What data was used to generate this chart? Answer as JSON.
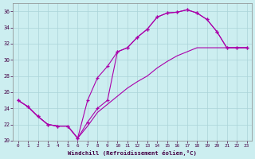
{
  "xlabel": "Windchill (Refroidissement éolien,°C)",
  "background_color": "#cceef0",
  "grid_color": "#aad4d8",
  "line_color": "#aa00aa",
  "ylim": [
    20,
    37
  ],
  "xlim": [
    -0.5,
    23.5
  ],
  "yticks": [
    20,
    22,
    24,
    26,
    28,
    30,
    32,
    34,
    36
  ],
  "xticks": [
    0,
    1,
    2,
    3,
    4,
    5,
    6,
    7,
    8,
    9,
    10,
    11,
    12,
    13,
    14,
    15,
    16,
    17,
    18,
    19,
    20,
    21,
    22,
    23
  ],
  "line_a_x": [
    0,
    1,
    2,
    3,
    4,
    5,
    6,
    7,
    8,
    9,
    10,
    11,
    12,
    13,
    14,
    15,
    16,
    17,
    18,
    19,
    20,
    21,
    22,
    23
  ],
  "line_a_y": [
    25.0,
    24.2,
    23.0,
    22.0,
    21.8,
    21.8,
    20.3,
    22.3,
    24.0,
    25.0,
    31.0,
    31.5,
    32.8,
    33.8,
    35.3,
    35.8,
    35.9,
    36.2,
    35.8,
    35.0,
    33.5,
    31.5,
    31.5,
    31.5
  ],
  "line_b_x": [
    0,
    1,
    2,
    3,
    4,
    5,
    6,
    7,
    8,
    9,
    10,
    11,
    12,
    13,
    14,
    15,
    16,
    17,
    18,
    19,
    20,
    21,
    22,
    23
  ],
  "line_b_y": [
    25.0,
    24.2,
    23.0,
    22.0,
    21.8,
    21.8,
    20.3,
    25.0,
    27.8,
    29.2,
    31.0,
    31.5,
    32.8,
    33.8,
    35.3,
    35.8,
    35.9,
    36.2,
    35.8,
    35.0,
    33.5,
    31.5,
    31.5,
    31.5
  ],
  "line_c_x": [
    0,
    1,
    2,
    3,
    4,
    5,
    6,
    7,
    8,
    9,
    10,
    11,
    12,
    13,
    14,
    15,
    16,
    17,
    18,
    19,
    20,
    21,
    22,
    23
  ],
  "line_c_y": [
    25.0,
    24.2,
    23.0,
    22.0,
    21.8,
    21.8,
    20.3,
    21.8,
    23.5,
    24.5,
    25.5,
    26.5,
    27.3,
    28.0,
    29.0,
    29.8,
    30.5,
    31.0,
    31.5,
    31.5,
    31.5,
    31.5,
    31.5,
    31.5
  ]
}
